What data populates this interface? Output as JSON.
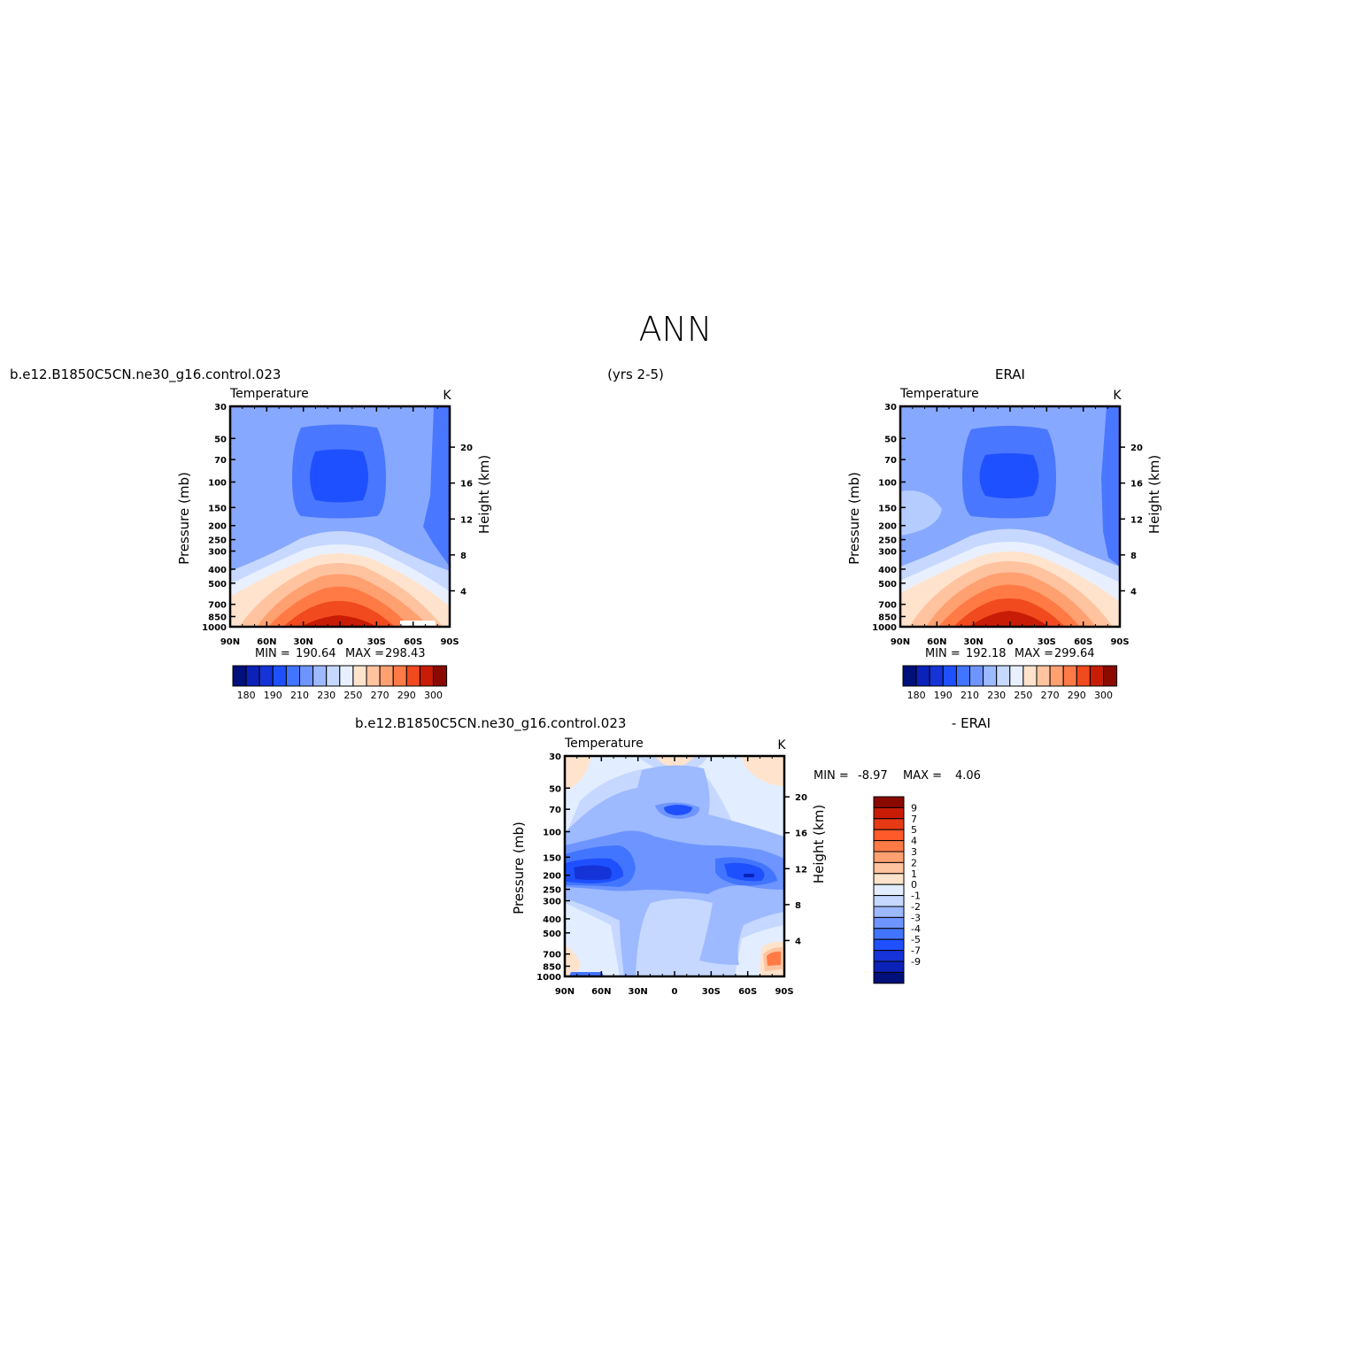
{
  "figure_title": "ANN",
  "chart_data": [
    {
      "id": "model",
      "type": "contour",
      "title_left": "b.e12.B1850C5CN.ne30_g16.control.023",
      "title_center": "(yrs 2-5)",
      "title_right": "",
      "variable": "Temperature",
      "units": "K",
      "xlabel": "",
      "ylabel": "Pressure (mb)",
      "ylabel_right": "Height (km)",
      "x_ticks": [
        "90N",
        "60N",
        "30N",
        "0",
        "30S",
        "60S",
        "90S"
      ],
      "y_ticks": [
        "30",
        "50",
        "70",
        "100",
        "150",
        "200",
        "250",
        "300",
        "400",
        "500",
        "700",
        "850",
        "1000"
      ],
      "height_ticks": [
        "4",
        "8",
        "12",
        "16",
        "20"
      ],
      "y_range": [
        30,
        1000
      ],
      "x_range": [
        90,
        -90
      ],
      "min_label": "MIN =",
      "min_value": "190.64",
      "max_label": "MAX =",
      "max_value": "298.43",
      "levels": [
        180,
        185,
        190,
        200,
        210,
        220,
        230,
        240,
        250,
        260,
        270,
        280,
        290,
        295,
        300
      ],
      "colorbar_labels": [
        "180",
        "190",
        "210",
        "230",
        "250",
        "270",
        "290",
        "300"
      ]
    },
    {
      "id": "obs",
      "type": "contour",
      "title_left": "",
      "title_center": "",
      "title_right": "ERAI",
      "variable": "Temperature",
      "units": "K",
      "xlabel": "",
      "ylabel": "Pressure (mb)",
      "ylabel_right": "Height (km)",
      "x_ticks": [
        "90N",
        "60N",
        "30N",
        "0",
        "30S",
        "60S",
        "90S"
      ],
      "y_ticks": [
        "30",
        "50",
        "70",
        "100",
        "150",
        "200",
        "250",
        "300",
        "400",
        "500",
        "700",
        "850",
        "1000"
      ],
      "height_ticks": [
        "4",
        "8",
        "12",
        "16",
        "20"
      ],
      "y_range": [
        30,
        1000
      ],
      "x_range": [
        90,
        -90
      ],
      "min_label": "MIN =",
      "min_value": "192.18",
      "max_label": "MAX =",
      "max_value": "299.64",
      "levels": [
        180,
        185,
        190,
        200,
        210,
        220,
        230,
        240,
        250,
        260,
        270,
        280,
        290,
        295,
        300
      ],
      "colorbar_labels": [
        "180",
        "190",
        "210",
        "230",
        "250",
        "270",
        "290",
        "300"
      ]
    },
    {
      "id": "diff",
      "type": "contour",
      "title_left": "b.e12.B1850C5CN.ne30_g16.control.023",
      "title_right": "- ERAI",
      "variable": "Temperature",
      "units": "K",
      "xlabel": "",
      "ylabel": "Pressure (mb)",
      "ylabel_right": "Height (km)",
      "x_ticks": [
        "90N",
        "60N",
        "30N",
        "0",
        "30S",
        "60S",
        "90S"
      ],
      "y_ticks": [
        "30",
        "50",
        "70",
        "100",
        "150",
        "200",
        "250",
        "300",
        "400",
        "500",
        "700",
        "850",
        "1000"
      ],
      "height_ticks": [
        "4",
        "8",
        "12",
        "16",
        "20"
      ],
      "y_range": [
        30,
        1000
      ],
      "x_range": [
        90,
        -90
      ],
      "min_label": "MIN =",
      "min_value": "-8.97",
      "max_label": "MAX =",
      "max_value": "4.06",
      "levels": [
        -9,
        -7,
        -5,
        -4,
        -3,
        -2,
        -1,
        0,
        1,
        2,
        3,
        4,
        5,
        7,
        9
      ],
      "colorbar_labels": [
        "9",
        "7",
        "5",
        "4",
        "3",
        "2",
        "1",
        "0",
        "-1",
        "-2",
        "-3",
        "-4",
        "-5",
        "-7",
        "-9"
      ]
    }
  ],
  "colors": {
    "t_scale": [
      "#00107a",
      "#0b22b8",
      "#1533d6",
      "#1f50ff",
      "#4275ff",
      "#6e95ff",
      "#9db9ff",
      "#c6d8ff",
      "#e8f0ff",
      "#ffe3cc",
      "#ffc3a0",
      "#ffa070",
      "#ff7a45",
      "#f04a1e",
      "#c81c06",
      "#8a0a00"
    ],
    "d_scale": [
      "#8a0a00",
      "#c81c06",
      "#e63a14",
      "#ff5a2a",
      "#ff7a45",
      "#ffa070",
      "#ffc3a0",
      "#ffe3cc",
      "#e2eeff",
      "#c6d8ff",
      "#9db9ff",
      "#6e95ff",
      "#4275ff",
      "#1f50ff",
      "#1533d6",
      "#0b22b8",
      "#00107a"
    ]
  }
}
